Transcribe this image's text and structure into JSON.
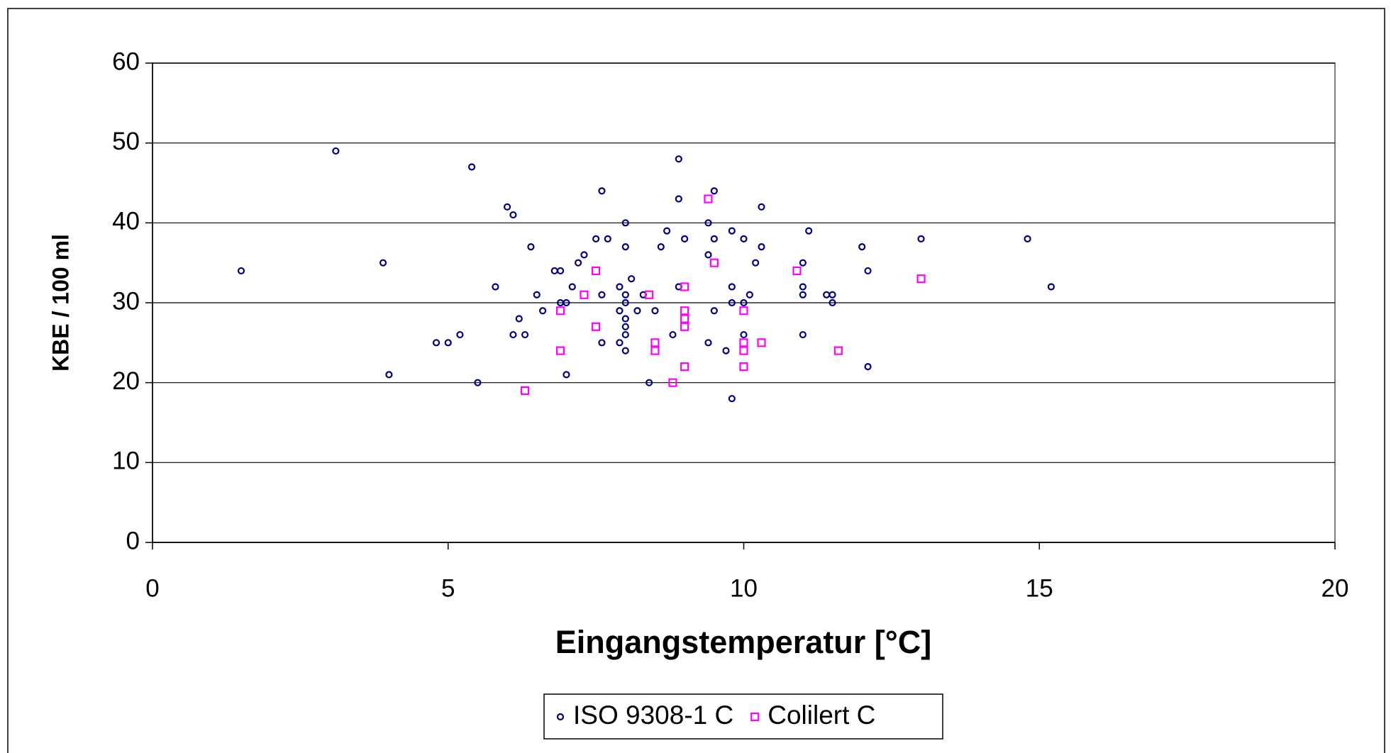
{
  "chart_data": {
    "type": "scatter",
    "xlabel": "Eingangstemperatur [°C]",
    "ylabel": "KBE / 100 ml",
    "xlim": [
      0,
      20
    ],
    "xticks": [
      0,
      5,
      10,
      15,
      20
    ],
    "ylim": [
      0,
      60
    ],
    "yticks": [
      0,
      10,
      20,
      30,
      40,
      50,
      60
    ],
    "grid": true,
    "legend": "bottom",
    "series": [
      {
        "name": "ISO 9308-1 C",
        "color": "#000080",
        "marker": "circle",
        "x": [
          1.5,
          3.1,
          3.9,
          4.0,
          4.8,
          5.0,
          5.2,
          5.4,
          5.5,
          5.8,
          6.0,
          6.1,
          6.1,
          6.2,
          6.3,
          6.4,
          6.5,
          6.6,
          6.8,
          6.9,
          6.9,
          7.0,
          7.0,
          7.1,
          7.2,
          7.3,
          7.5,
          7.6,
          7.6,
          7.6,
          7.7,
          7.9,
          7.9,
          7.9,
          8.0,
          8.0,
          8.0,
          8.0,
          8.0,
          8.0,
          8.0,
          8.0,
          8.1,
          8.2,
          8.3,
          8.4,
          8.5,
          8.6,
          8.7,
          8.8,
          8.9,
          8.9,
          8.9,
          9.0,
          9.4,
          9.4,
          9.4,
          9.5,
          9.5,
          9.5,
          9.7,
          9.8,
          9.8,
          9.8,
          9.8,
          10.0,
          10.0,
          10.0,
          10.1,
          10.2,
          10.3,
          10.3,
          11.0,
          11.0,
          11.0,
          11.0,
          11.1,
          11.4,
          11.5,
          11.5,
          12.0,
          12.1,
          12.1,
          13.0,
          14.8,
          15.2
        ],
        "values": [
          34,
          49,
          35,
          21,
          25,
          25,
          26,
          47,
          20,
          32,
          42,
          41,
          26,
          28,
          26,
          37,
          31,
          29,
          34,
          34,
          30,
          30,
          21,
          32,
          35,
          36,
          38,
          44,
          31,
          25,
          38,
          32,
          29,
          25,
          40,
          37,
          31,
          30,
          28,
          27,
          26,
          24,
          33,
          29,
          31,
          20,
          29,
          37,
          39,
          26,
          48,
          43,
          32,
          38,
          40,
          36,
          25,
          44,
          38,
          29,
          24,
          39,
          32,
          30,
          18,
          38,
          30,
          26,
          31,
          35,
          42,
          37,
          35,
          32,
          31,
          26,
          39,
          31,
          31,
          30,
          37,
          34,
          22,
          38,
          38,
          32
        ]
      },
      {
        "name": "Colilert C",
        "color": "#ff00ff",
        "marker": "square",
        "x": [
          6.3,
          6.9,
          6.9,
          7.3,
          7.5,
          7.5,
          8.4,
          8.5,
          8.5,
          8.8,
          9.0,
          9.0,
          9.0,
          9.0,
          9.0,
          9.4,
          9.5,
          10.0,
          10.0,
          10.0,
          10.0,
          10.3,
          10.9,
          11.6,
          13.0
        ],
        "values": [
          19,
          29,
          24,
          31,
          34,
          27,
          31,
          25,
          24,
          20,
          32,
          29,
          28,
          27,
          22,
          43,
          35,
          29,
          25,
          24,
          22,
          25,
          34,
          24,
          33
        ]
      }
    ]
  }
}
